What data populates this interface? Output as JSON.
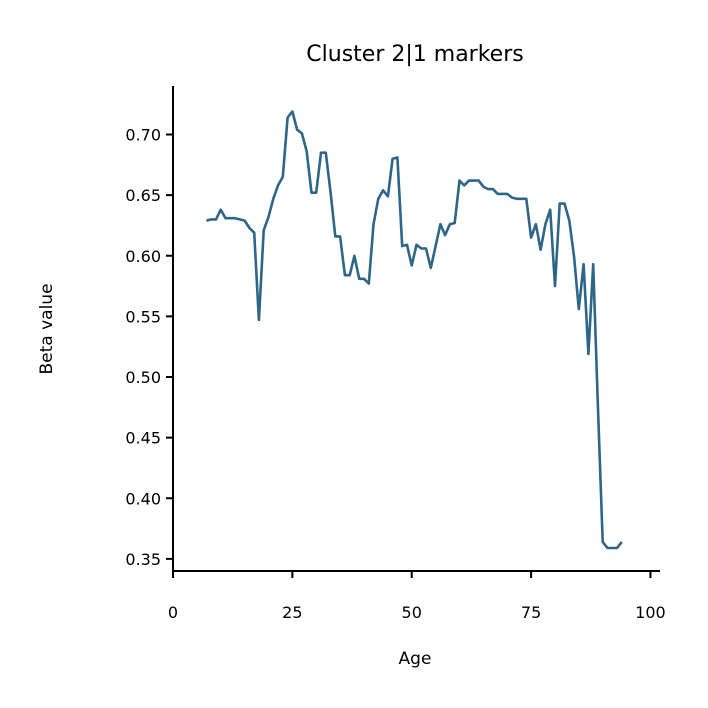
{
  "chart_data": {
    "type": "line",
    "title": "Cluster 2|1 markers",
    "xlabel": "Age",
    "ylabel": "Beta value",
    "xlim": [
      0,
      102
    ],
    "ylim": [
      0.34,
      0.74
    ],
    "xticks": [
      0,
      25,
      50,
      75,
      100
    ],
    "yticks": [
      0.35,
      0.4,
      0.45,
      0.5,
      0.55,
      0.6,
      0.65,
      0.7
    ],
    "grid": false,
    "line_color": "#2e6688",
    "series": [
      {
        "x": [
          7,
          8,
          9,
          10,
          11,
          12,
          13,
          14,
          15,
          16,
          17,
          18,
          19,
          20,
          21,
          22,
          23,
          24,
          25,
          26,
          27,
          28,
          29,
          30,
          31,
          32,
          33,
          34,
          35,
          36,
          37,
          38,
          39,
          40,
          41,
          42,
          43,
          44,
          45,
          46,
          47,
          48,
          49,
          50,
          51,
          52,
          53,
          54,
          55,
          56,
          57,
          58,
          59,
          60,
          61,
          62,
          63,
          64,
          65,
          66,
          67,
          68,
          69,
          70,
          71,
          72,
          73,
          74,
          75,
          76,
          77,
          78,
          79,
          80,
          81,
          82,
          83,
          84,
          85,
          86,
          87,
          88,
          89,
          90,
          91,
          92,
          93,
          94
        ],
        "y": [
          0.629,
          0.63,
          0.63,
          0.638,
          0.631,
          0.631,
          0.631,
          0.63,
          0.629,
          0.623,
          0.619,
          0.547,
          0.621,
          0.632,
          0.647,
          0.658,
          0.665,
          0.714,
          0.719,
          0.704,
          0.701,
          0.686,
          0.652,
          0.652,
          0.685,
          0.685,
          0.652,
          0.616,
          0.616,
          0.584,
          0.584,
          0.6,
          0.581,
          0.581,
          0.577,
          0.626,
          0.647,
          0.654,
          0.649,
          0.68,
          0.681,
          0.608,
          0.609,
          0.592,
          0.609,
          0.606,
          0.606,
          0.59,
          0.608,
          0.626,
          0.617,
          0.626,
          0.627,
          0.662,
          0.658,
          0.662,
          0.662,
          0.662,
          0.657,
          0.655,
          0.655,
          0.651,
          0.651,
          0.651,
          0.648,
          0.647,
          0.647,
          0.647,
          0.615,
          0.626,
          0.605,
          0.626,
          0.638,
          0.575,
          0.643,
          0.643,
          0.629,
          0.599,
          0.556,
          0.593,
          0.519,
          0.593,
          0.476,
          0.364,
          0.359,
          0.359,
          0.359,
          0.364
        ]
      }
    ]
  }
}
